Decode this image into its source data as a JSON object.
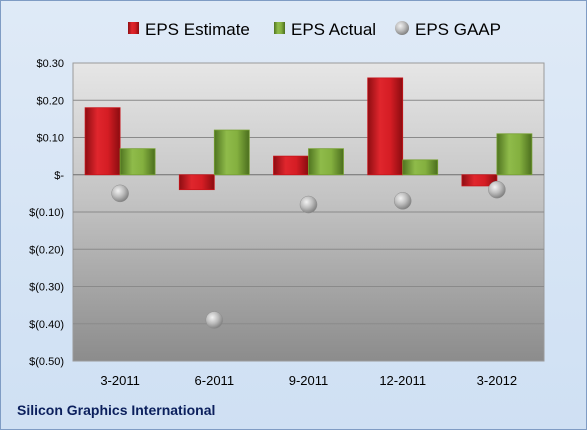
{
  "company_name": "Silicon Graphics International",
  "colors": {
    "estimate": "#c8141b",
    "actual": "#77a033",
    "gaap": "#b4b4b4"
  },
  "chart_data": {
    "type": "bar",
    "categories": [
      "3-2011",
      "6-2011",
      "9-2011",
      "12-2011",
      "3-2012"
    ],
    "series": [
      {
        "name": "EPS Estimate",
        "kind": "bar",
        "values": [
          0.18,
          -0.04,
          0.05,
          0.26,
          -0.03
        ]
      },
      {
        "name": "EPS Actual",
        "kind": "bar",
        "values": [
          0.07,
          0.12,
          0.07,
          0.04,
          0.11
        ]
      },
      {
        "name": "EPS GAAP",
        "kind": "marker",
        "values": [
          -0.05,
          -0.39,
          -0.08,
          -0.07,
          -0.04
        ]
      }
    ],
    "ylim": [
      -0.5,
      0.3
    ],
    "yticks": [
      0.3,
      0.2,
      0.1,
      0,
      -0.1,
      -0.2,
      -0.3,
      -0.4,
      -0.5
    ],
    "ytick_labels": [
      "$0.30",
      "$0.20",
      "$0.10",
      "$-",
      "$(0.10)",
      "$(0.20)",
      "$(0.30)",
      "$(0.40)",
      "$(0.50)"
    ],
    "grid": true,
    "legend_position": "top"
  }
}
